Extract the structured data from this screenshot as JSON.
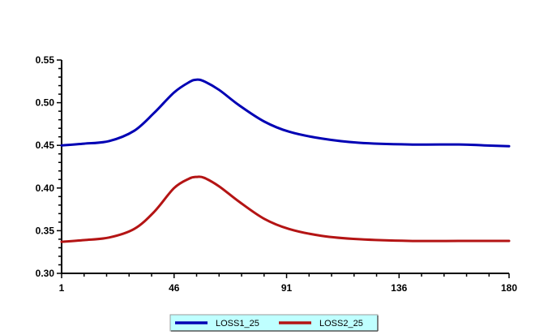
{
  "chart_data": {
    "type": "line",
    "title": "",
    "xlabel": "",
    "ylabel": "",
    "xlim": [
      1,
      180
    ],
    "ylim": [
      0.3,
      0.55
    ],
    "x_ticks": [
      "1",
      "46",
      "91",
      "136",
      "180"
    ],
    "y_ticks": [
      "0.30",
      "0.35",
      "0.40",
      "0.45",
      "0.50",
      "0.55"
    ],
    "grid": false,
    "legend_position": "bottom",
    "series": [
      {
        "name": "LOSS1_25",
        "color": "#0000b4",
        "x": [
          1,
          10,
          20,
          30,
          38,
          46,
          52,
          55,
          58,
          64,
          72,
          82,
          92,
          105,
          120,
          140,
          160,
          170,
          180
        ],
        "y": [
          0.45,
          0.452,
          0.455,
          0.467,
          0.488,
          0.512,
          0.524,
          0.527,
          0.525,
          0.515,
          0.497,
          0.478,
          0.466,
          0.458,
          0.453,
          0.451,
          0.451,
          0.45,
          0.449
        ]
      },
      {
        "name": "LOSS2_25",
        "color": "#b41414",
        "x": [
          1,
          10,
          20,
          30,
          38,
          46,
          52,
          55,
          58,
          64,
          72,
          82,
          92,
          105,
          120,
          140,
          160,
          170,
          180
        ],
        "y": [
          0.337,
          0.339,
          0.342,
          0.352,
          0.372,
          0.4,
          0.411,
          0.413,
          0.412,
          0.402,
          0.384,
          0.364,
          0.352,
          0.344,
          0.34,
          0.338,
          0.338,
          0.338,
          0.338
        ]
      }
    ]
  }
}
